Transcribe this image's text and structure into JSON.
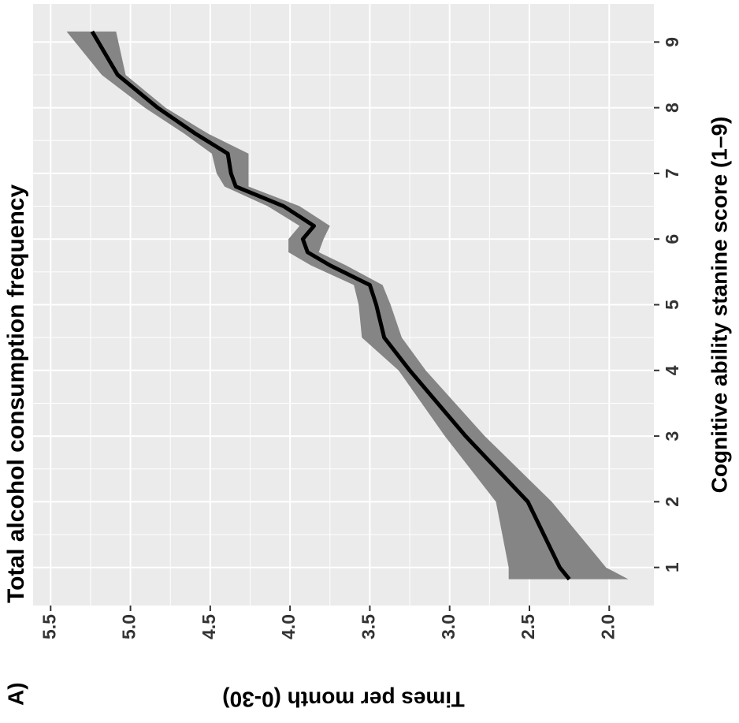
{
  "panel_label": "A)",
  "chart_data": {
    "type": "line",
    "title": "Total alcohol consumption frequency",
    "x_label": "Cognitive ability stanine score (1–9)",
    "y_label": "Times per month (0-30)",
    "x": [
      0.82,
      1,
      2,
      3,
      4,
      4.5,
      5,
      5.3,
      5.6,
      5.8,
      6,
      6.2,
      6.5,
      6.8,
      7,
      7.3,
      7.6,
      8,
      8.5,
      9.16
    ],
    "series": [
      {
        "color": "#000000",
        "band_color": "#858585",
        "values": [
          2.25,
          2.31,
          2.51,
          2.9,
          3.25,
          3.41,
          3.46,
          3.5,
          3.75,
          3.89,
          3.92,
          3.85,
          4.04,
          4.34,
          4.37,
          4.39,
          4.59,
          4.83,
          5.08,
          5.24
        ],
        "lower": [
          1.88,
          2.02,
          2.36,
          2.78,
          3.15,
          3.3,
          3.37,
          3.42,
          3.65,
          3.82,
          3.79,
          3.75,
          3.94,
          4.26,
          4.26,
          4.26,
          4.51,
          4.78,
          5.03,
          5.09
        ],
        "upper": [
          2.63,
          2.63,
          2.71,
          3.03,
          3.32,
          3.55,
          3.57,
          3.6,
          3.87,
          4.01,
          4.01,
          3.94,
          4.14,
          4.41,
          4.46,
          4.49,
          4.66,
          4.91,
          5.18,
          5.4
        ]
      }
    ],
    "xlim": [
      0.42,
      9.58
    ],
    "xticks": [
      1,
      2,
      3,
      4,
      5,
      6,
      7,
      8,
      9
    ],
    "ylim": [
      1.72,
      5.61
    ],
    "yticks": [
      {
        "value": 2,
        "label": "2.0"
      },
      2.5,
      {
        "value": 3,
        "label": "3.0"
      },
      3.5,
      {
        "value": 4,
        "label": "4.0"
      },
      4.5,
      {
        "value": 5,
        "label": "5.0"
      },
      5.5
    ],
    "grid": true,
    "background": "#ebebeb"
  }
}
